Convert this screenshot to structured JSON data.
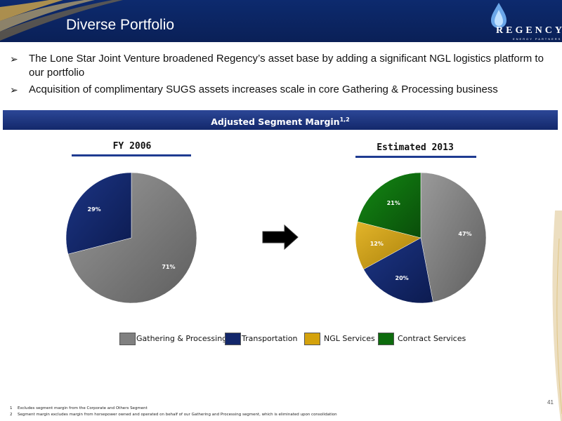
{
  "header": {
    "title": "Diverse Portfolio",
    "logo_name": "REGENCY",
    "logo_sub": "ENERGY PARTNERS"
  },
  "bullets": [
    {
      "text": "The Lone Star Joint Venture broadened Regency’s asset base by adding a significant NGL logistics platform to our portfolio"
    },
    {
      "text": "Acquisition of complimentary SUGS assets increases scale in core Gathering & Processing business"
    }
  ],
  "banner": {
    "text": "Adjusted Segment Margin",
    "sup": "1,2"
  },
  "colors": {
    "header_bg": "#0d2a6e",
    "accent_blue": "#1f3b91",
    "gathering": "#808080",
    "transportation": "#13276b",
    "ngl": "#d4a20c",
    "contract": "#0d6b0d"
  },
  "chart_data": [
    {
      "type": "pie",
      "title": "FY 2006",
      "categories": [
        "Gathering & Processing",
        "Transportation"
      ],
      "values": [
        71,
        29
      ],
      "labels": [
        "71%",
        "29%"
      ]
    },
    {
      "type": "pie",
      "title": "Estimated 2013",
      "categories": [
        "Gathering & Processing",
        "Transportation",
        "NGL Services",
        "Contract Services"
      ],
      "values": [
        47,
        20,
        12,
        21
      ],
      "labels": [
        "47%",
        "20%",
        "12%",
        "21%"
      ]
    }
  ],
  "legend": [
    {
      "label": "Gathering & Processing",
      "color": "#808080"
    },
    {
      "label": "Transportation",
      "color": "#13276b"
    },
    {
      "label": "NGL Services",
      "color": "#d4a20c"
    },
    {
      "label": "Contract Services",
      "color": "#0d6b0d"
    }
  ],
  "footnotes": [
    {
      "num": "1",
      "text": "Excludes segment margin from the Corporate and Others Segment"
    },
    {
      "num": "2",
      "text": "Segment margin excludes margin from horsepower owned and operated on behalf of our Gathering and Processing segment, which is eliminated upon consolidation"
    }
  ],
  "page_number": "41"
}
